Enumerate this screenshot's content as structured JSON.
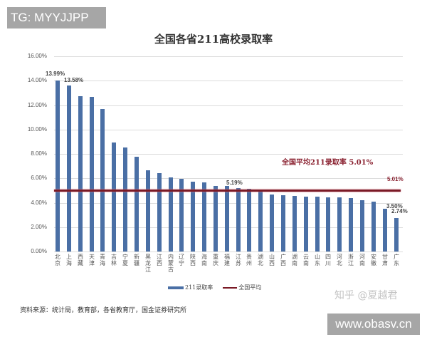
{
  "watermarks": {
    "top_left": "TG: MYYJJPP",
    "zhihu": "知乎 @夏越君",
    "bottom_right": "www.obasv.cn"
  },
  "chart_data": {
    "type": "bar",
    "title": "全国各省211高校录取率",
    "xlabel": "",
    "ylabel": "",
    "ylim": [
      0,
      16
    ],
    "yticks": [
      "0.00%",
      "2.00%",
      "4.00%",
      "6.00%",
      "8.00%",
      "10.00%",
      "12.00%",
      "14.00%",
      "16.00%"
    ],
    "grid": true,
    "legend_position": "bottom",
    "categories": [
      "北京",
      "上海",
      "西藏",
      "天津",
      "青海",
      "吉林",
      "宁夏",
      "新疆",
      "黑龙江",
      "江西",
      "内蒙古",
      "辽宁",
      "陕西",
      "海南",
      "重庆",
      "福建",
      "江苏",
      "贵州",
      "湖北",
      "山西",
      "广西",
      "湖南",
      "云南",
      "山东",
      "四川",
      "河北",
      "浙江",
      "河南",
      "安徽",
      "甘肃",
      "广东"
    ],
    "series": [
      {
        "name": "211录取率",
        "type": "bar",
        "color": "#4a6fa5",
        "values": [
          13.99,
          13.58,
          12.75,
          12.65,
          11.65,
          8.95,
          8.55,
          7.75,
          6.65,
          6.45,
          6.05,
          5.95,
          5.7,
          5.65,
          5.4,
          5.35,
          5.19,
          5.15,
          5.1,
          4.65,
          4.6,
          4.55,
          4.5,
          4.5,
          4.45,
          4.45,
          4.4,
          4.2,
          4.1,
          3.5,
          2.74
        ]
      },
      {
        "name": "全国平均",
        "type": "line",
        "color": "#7a1a26",
        "value": 5.01
      }
    ],
    "annotations": [
      {
        "text": "13.99%",
        "category": "北京"
      },
      {
        "text": "13.58%",
        "category": "上海"
      },
      {
        "text": "5.19%",
        "category": "江苏"
      },
      {
        "text": "3.50%",
        "category": "甘肃"
      },
      {
        "text": "2.74%",
        "category": "广东"
      },
      {
        "text": "5.01%",
        "category": "广东",
        "series": "全国平均"
      },
      {
        "text": "全国平均211录取率 5.01%"
      }
    ]
  },
  "legend": {
    "bar_label": "211录取率",
    "line_label": "全国平均"
  },
  "source": "资料来源：统计局，教育部，各省教育厅，国金证券研究所"
}
